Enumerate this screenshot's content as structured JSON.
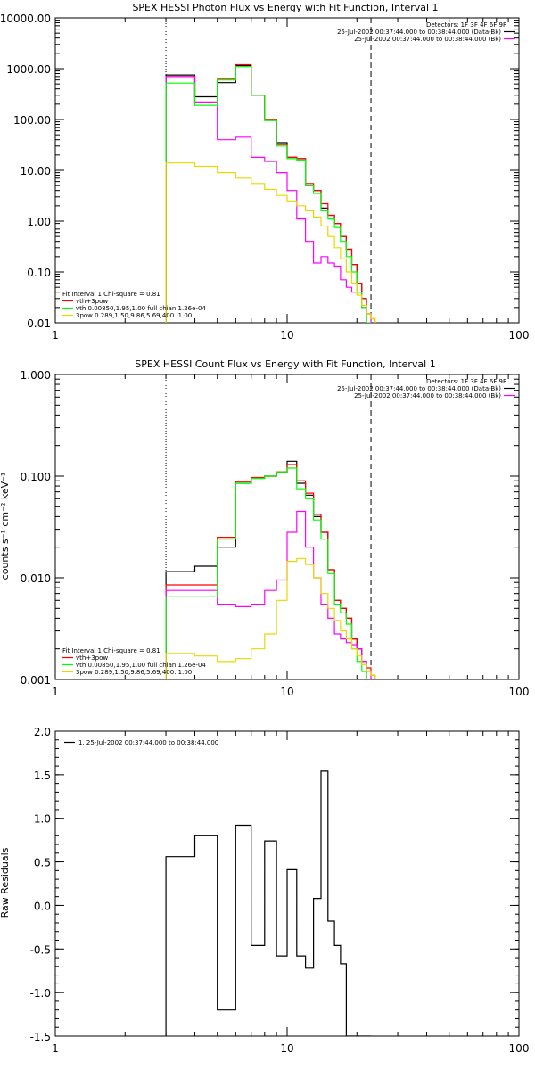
{
  "chart_data": [
    {
      "type": "line",
      "title": "SPEX HESSI Photon Flux vs Energy with Fit Function, Interval 1",
      "xscale": "log",
      "yscale": "log",
      "xlim": [
        1,
        100
      ],
      "ylim": [
        0.01,
        10000
      ],
      "xticks": [
        {
          "v": 1,
          "label": "1"
        },
        {
          "v": 10,
          "label": "10"
        },
        {
          "v": 100,
          "label": "100"
        }
      ],
      "yticks": [
        {
          "v": 0.01,
          "label": "0.01"
        },
        {
          "v": 0.1,
          "label": "0.10"
        },
        {
          "v": 1,
          "label": "1.00"
        },
        {
          "v": 10,
          "label": "10.00"
        },
        {
          "v": 100,
          "label": "100.00"
        },
        {
          "v": 1000,
          "label": "1000.00"
        },
        {
          "v": 10000,
          "label": "10000.00"
        }
      ],
      "vlines": [
        {
          "x": 3,
          "style": "dotted"
        },
        {
          "x": 23,
          "style": "dashed"
        }
      ],
      "edges": [
        3,
        4,
        5,
        6,
        7,
        8,
        9,
        10,
        11,
        12,
        13,
        14,
        15,
        16,
        17,
        18,
        19,
        20,
        21,
        22,
        23,
        24,
        25,
        26,
        27,
        28
      ],
      "series": [
        {
          "name": "",
          "color": "#000000",
          "values": [
            750,
            280,
            530,
            1150,
            300,
            100,
            35,
            18,
            17,
            5,
            4,
            1.8,
            1.3,
            0.9,
            0.5,
            0.28,
            0.14,
            0.06,
            0.03,
            null,
            null,
            null,
            null,
            null,
            null
          ]
        },
        {
          "name": "",
          "color": "#ff0000",
          "values": [
            700,
            220,
            620,
            1200,
            300,
            100,
            32,
            18,
            17,
            5.5,
            4,
            2.2,
            1.3,
            0.9,
            0.5,
            0.28,
            0.14,
            0.06,
            0.03,
            0.015,
            0.012,
            null,
            null,
            null,
            null
          ]
        },
        {
          "name": "",
          "color": "#ff00ff",
          "values": [
            700,
            220,
            40,
            45,
            18,
            15,
            9,
            4,
            1.1,
            0.4,
            0.15,
            0.2,
            0.15,
            0.13,
            0.07,
            0.05,
            0.04,
            0.04,
            0.02,
            0.015,
            null,
            null,
            null,
            null,
            null
          ]
        },
        {
          "name": "",
          "color": "#00ff00",
          "values": [
            520,
            190,
            600,
            1100,
            300,
            95,
            30,
            17,
            16,
            5,
            3.5,
            1.6,
            1.1,
            0.75,
            0.4,
            0.2,
            0.1,
            0.04,
            0.02,
            0.01,
            null,
            null,
            null,
            null,
            null
          ]
        },
        {
          "name": "",
          "color": "#e8d800",
          "values": [
            14,
            12,
            9,
            7,
            5.5,
            4.2,
            3.2,
            2.5,
            2.0,
            1.6,
            1.2,
            0.8,
            0.5,
            0.3,
            0.18,
            0.1,
            0.06,
            0.035,
            0.022,
            0.015,
            0.012,
            null,
            null,
            null,
            null
          ]
        }
      ],
      "legend_top": {
        "header": "Detectors: 1F 3F 4F 6F 9F",
        "entries": [
          {
            "text": "25-Jul-2002 00:37:44.000 to 00:38:44.000 (Data-Bk)",
            "color": "#000000"
          },
          {
            "text": "25-Jul-2002 00:37:44.000 to 00:38:44.000 (Bk)",
            "color": "#ff00ff"
          }
        ]
      },
      "legend_bottom": {
        "header": "Fit Interval 1    Chi-square = 0.81",
        "entries": [
          {
            "text": "vth+3pow",
            "color": "#ff0000"
          },
          {
            "text": "vth 0.00850,1.95,1.00  full chian 1.26e-04",
            "color": "#00ff00"
          },
          {
            "text": "3pow 0.289,1.50,9.86,5.69,400.,1.00",
            "color": "#e8d800"
          }
        ]
      }
    },
    {
      "type": "line",
      "title": "SPEX HESSI Count Flux vs Energy with Fit Function, Interval 1",
      "ylabel": "counts s⁻¹ cm⁻² keV⁻¹",
      "xscale": "log",
      "yscale": "log",
      "xlim": [
        1,
        100
      ],
      "ylim": [
        0.001,
        1.0
      ],
      "xticks": [
        {
          "v": 1,
          "label": "1"
        },
        {
          "v": 10,
          "label": "10"
        },
        {
          "v": 100,
          "label": "100"
        }
      ],
      "yticks": [
        {
          "v": 0.001,
          "label": "0.001"
        },
        {
          "v": 0.01,
          "label": "0.010"
        },
        {
          "v": 0.1,
          "label": "0.100"
        },
        {
          "v": 1,
          "label": "1.000"
        }
      ],
      "vlines": [
        {
          "x": 3,
          "style": "dotted"
        },
        {
          "x": 23,
          "style": "dashed"
        }
      ],
      "edges": [
        3,
        4,
        5,
        6,
        7,
        8,
        9,
        10,
        11,
        12,
        13,
        14,
        15,
        16,
        17,
        18,
        19,
        20,
        21,
        22,
        23,
        24,
        25,
        26,
        27,
        28
      ],
      "series": [
        {
          "name": "",
          "color": "#000000",
          "values": [
            0.0115,
            0.013,
            0.02,
            0.085,
            0.095,
            0.1,
            0.11,
            0.14,
            0.085,
            0.065,
            0.04,
            0.028,
            0.012,
            0.006,
            0.005,
            0.004,
            0.0025,
            0.002,
            0.0015,
            null,
            null,
            null,
            null,
            null,
            null
          ]
        },
        {
          "name": "",
          "color": "#ff0000",
          "values": [
            0.0085,
            0.0085,
            0.025,
            0.088,
            0.097,
            0.1,
            0.11,
            0.13,
            0.09,
            0.068,
            0.042,
            0.028,
            0.012,
            0.006,
            0.005,
            0.004,
            0.0025,
            0.002,
            0.0015,
            0.0013,
            0.0011,
            null,
            null,
            null,
            null
          ]
        },
        {
          "name": "",
          "color": "#ff00ff",
          "values": [
            0.0075,
            0.0075,
            0.0055,
            0.0052,
            0.0055,
            0.0075,
            0.0095,
            0.028,
            0.045,
            0.02,
            0.01,
            0.0055,
            0.004,
            0.0028,
            0.0025,
            0.0023,
            0.0022,
            0.002,
            0.0015,
            0.0012,
            null,
            null,
            null,
            null,
            null
          ]
        },
        {
          "name": "",
          "color": "#00ff00",
          "values": [
            0.0065,
            0.0065,
            0.024,
            0.085,
            0.095,
            0.1,
            0.11,
            0.12,
            0.075,
            0.06,
            0.037,
            0.024,
            0.011,
            0.0055,
            0.0045,
            0.0035,
            0.002,
            0.0015,
            0.0012,
            0.001,
            null,
            null,
            null,
            null,
            null
          ]
        },
        {
          "name": "",
          "color": "#e8d800",
          "values": [
            0.0018,
            0.0017,
            0.0015,
            0.0016,
            0.002,
            0.0028,
            0.006,
            0.0145,
            0.0155,
            0.0135,
            0.01,
            0.007,
            0.005,
            0.0038,
            0.003,
            0.0025,
            0.002,
            0.0017,
            0.0014,
            0.0012,
            0.0011,
            null,
            null,
            null,
            null
          ]
        }
      ],
      "legend_top": {
        "header": "Detectors: 1F 3F 4F 6F 9F",
        "entries": [
          {
            "text": "25-Jul-2002 00:37:44.000 to 00:38:44.000 (Data-Bk)",
            "color": "#000000"
          },
          {
            "text": "25-Jul-2002 00:37:44.000 to 00:38:44.000 (Bk)",
            "color": "#ff00ff"
          }
        ]
      },
      "legend_bottom": {
        "header": "Fit Interval 1    Chi-square = 0.81",
        "entries": [
          {
            "text": "vth+3pow",
            "color": "#ff0000"
          },
          {
            "text": "vth 0.00850,1.95,1.00  full chian 1.26e-04",
            "color": "#00ff00"
          },
          {
            "text": "3pow 0.289,1.50,9.86,5.69,400.,1.00",
            "color": "#e8d800"
          }
        ]
      }
    },
    {
      "type": "line",
      "ylabel": "Raw Residuals",
      "xscale": "log",
      "yscale": "linear",
      "xlim": [
        1,
        100
      ],
      "ylim": [
        -1.5,
        2.0
      ],
      "xticks": [
        {
          "v": 1,
          "label": "1"
        },
        {
          "v": 10,
          "label": "10"
        },
        {
          "v": 100,
          "label": "100"
        }
      ],
      "yticks": [
        {
          "v": -1.5,
          "label": "-1.5"
        },
        {
          "v": -1.0,
          "label": "-1.0"
        },
        {
          "v": -0.5,
          "label": "-0.5"
        },
        {
          "v": 0.0,
          "label": "0.0"
        },
        {
          "v": 0.5,
          "label": "0.5"
        },
        {
          "v": 1.0,
          "label": "1.0"
        },
        {
          "v": 1.5,
          "label": "1.5"
        },
        {
          "v": 2.0,
          "label": "2.0"
        }
      ],
      "edges": [
        3,
        4,
        5,
        6,
        7,
        8,
        9,
        10,
        11,
        12,
        13,
        14,
        15,
        16,
        17,
        18,
        19,
        20,
        21,
        22,
        23
      ],
      "series": [
        {
          "name": "1. 25-Jul-2002 00:37:44.000 to 00:38:44.000",
          "color": "#000000",
          "values": [
            0.56,
            0.8,
            -1.2,
            0.92,
            -0.46,
            0.74,
            -0.58,
            0.41,
            -0.58,
            -0.72,
            0.08,
            1.54,
            -0.18,
            -0.46,
            -0.67,
            -1.5,
            -1.5,
            -1.5,
            -1.5,
            -1.5
          ]
        }
      ],
      "legend": [
        {
          "text": "1. 25-Jul-2002 00:37:44.000 to 00:38:44.000",
          "color": "#000000"
        }
      ]
    }
  ]
}
